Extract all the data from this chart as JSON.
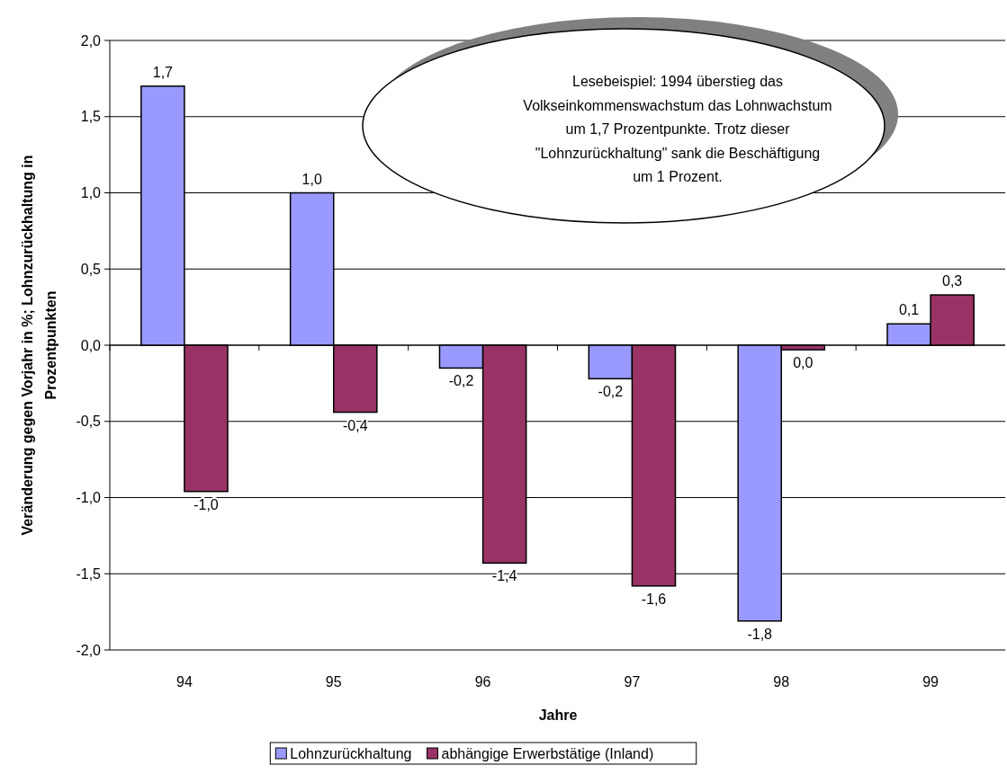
{
  "chart_data": {
    "type": "bar",
    "xlabel": "Jahre",
    "ylabel": "Veränderung gegen Vorjahr in %; Lohnzurückhaltung in Prozentpunkten",
    "categories": [
      "94",
      "95",
      "96",
      "97",
      "98",
      "99"
    ],
    "series": [
      {
        "name": "Lohnzurückhaltung",
        "color": "#9999ff",
        "values": [
          1.7,
          1.0,
          -0.15,
          -0.22,
          -1.81,
          0.14
        ],
        "value_labels": [
          "1,7",
          "1,0",
          "-0,2",
          "-0,2",
          "-1,8",
          "0,1"
        ]
      },
      {
        "name": "abhängige Erwerbstätige (Inland)",
        "color": "#993366",
        "values": [
          -0.96,
          -0.44,
          -1.43,
          -1.58,
          -0.03,
          0.33
        ],
        "value_labels": [
          "-1,0",
          "-0,4",
          "-1,4",
          "-1,6",
          "0,0",
          "0,3"
        ]
      }
    ],
    "ylim": [
      -2,
      2
    ],
    "yticks": [
      {
        "value": -2,
        "label": "-2,0"
      },
      {
        "value": -1.5,
        "label": "-1,5"
      },
      {
        "value": -1,
        "label": "-1,0"
      },
      {
        "value": -0.5,
        "label": "-0,5"
      },
      {
        "value": 0,
        "label": "0,0"
      },
      {
        "value": 0.5,
        "label": "0,5"
      },
      {
        "value": 1,
        "label": "1,0"
      },
      {
        "value": 1.5,
        "label": "1,5"
      },
      {
        "value": 2,
        "label": "2,0"
      }
    ],
    "grid": "y",
    "legend": "bottom",
    "annotations": [
      "Lesebeispiel: 1994 überstieg das Volkseinkommenswachstum das Lohnwachstum um 1,7 Prozentpunkte. Trotz dieser \"Lohnzurückhaltung\" sank die Beschäftigung um 1 Prozent."
    ]
  }
}
